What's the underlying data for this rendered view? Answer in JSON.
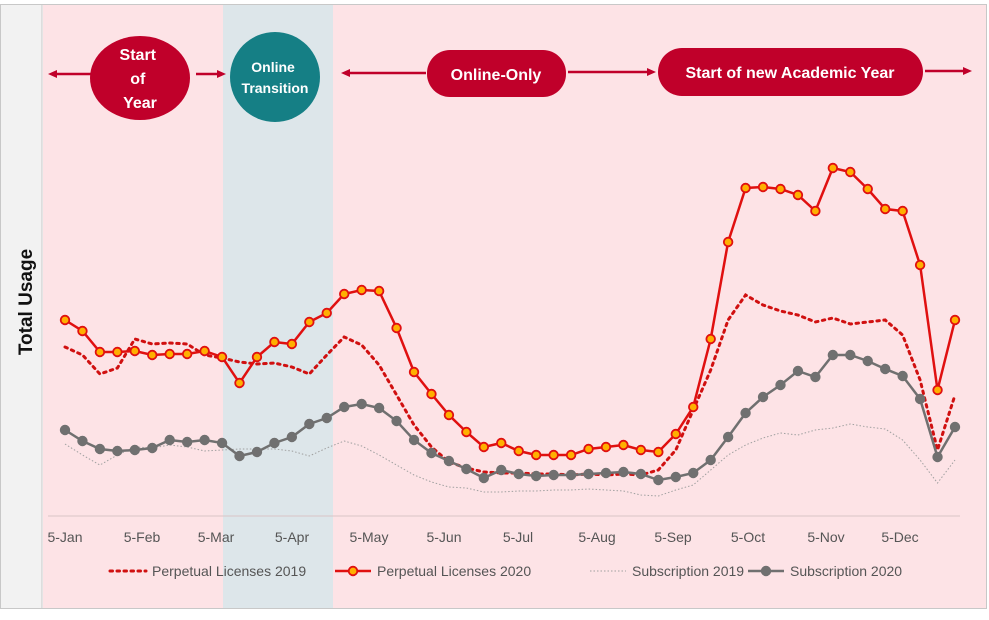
{
  "chart_data": {
    "type": "line",
    "title": "",
    "xlabel": "",
    "ylabel": "Total Usage",
    "ylim": [
      0,
      360
    ],
    "y_units": "relative (unlabeled axis)",
    "grid": false,
    "legend_placement": "bottom",
    "x_tick_labels": [
      "5-Jan",
      "5-Feb",
      "5-Mar",
      "5-Apr",
      "5-May",
      "5-Jun",
      "5-Jul",
      "5-Aug",
      "5-Sep",
      "5-Oct",
      "5-Nov",
      "5-Dec"
    ],
    "x_week_count": 52,
    "series": [
      {
        "name": "Perpetual Licenses 2019",
        "style": "dotted",
        "color": "#d01010",
        "values": [
          168,
          160,
          141,
          147,
          176,
          171,
          172,
          171,
          160,
          157,
          153,
          151,
          152,
          148,
          141,
          160,
          178,
          170,
          150,
          120,
          90,
          68,
          53,
          47,
          43,
          42,
          42,
          41,
          41,
          40,
          41,
          40,
          41,
          40,
          45,
          65,
          105,
          145,
          195,
          220,
          210,
          204,
          200,
          193,
          197,
          191,
          193,
          195,
          180,
          135,
          65,
          120
        ]
      },
      {
        "name": "Perpetual Licenses 2020",
        "style": "line-marker",
        "color": "#e01010",
        "marker_fill": "#ffb000",
        "values": [
          195,
          184,
          163,
          163,
          164,
          160,
          161,
          161,
          164,
          158,
          132,
          158,
          173,
          171,
          193,
          202,
          221,
          225,
          224,
          187,
          143,
          121,
          100,
          83,
          68,
          72,
          64,
          60,
          60,
          60,
          66,
          68,
          70,
          65,
          63,
          81,
          108,
          176,
          273,
          327,
          328,
          326,
          320,
          304,
          347,
          343,
          326,
          306,
          304,
          250,
          125,
          195
        ]
      },
      {
        "name": "Subscription 2019",
        "style": "dotted-thin",
        "color": "#a0a0a0",
        "values": [
          71,
          60,
          50,
          60,
          68,
          67,
          70,
          68,
          64,
          65,
          66,
          66,
          66,
          64,
          59,
          67,
          74,
          69,
          60,
          50,
          40,
          33,
          28,
          27,
          23,
          23,
          24,
          24,
          25,
          25,
          26,
          25,
          24,
          20,
          19,
          25,
          30,
          45,
          60,
          70,
          77,
          82,
          80,
          85,
          87,
          91,
          88,
          86,
          75,
          55,
          32,
          55
        ]
      },
      {
        "name": "Subscription 2020",
        "style": "line-marker",
        "color": "#707070",
        "marker_fill": "#707070",
        "values": [
          85,
          74,
          66,
          64,
          65,
          67,
          75,
          73,
          75,
          72,
          59,
          63,
          72,
          78,
          91,
          97,
          108,
          111,
          107,
          94,
          75,
          62,
          54,
          46,
          37,
          45,
          41,
          39,
          40,
          40,
          41,
          42,
          43,
          41,
          35,
          38,
          42,
          55,
          78,
          102,
          118,
          130,
          144,
          138,
          160,
          160,
          154,
          146,
          139,
          116,
          58,
          88
        ]
      }
    ],
    "annotations": {
      "start_of_year": [
        "Start",
        "of",
        "Year"
      ],
      "online_transition": [
        "Online",
        "Transition"
      ],
      "online_only": "Online-Only",
      "new_academic_year": "Start of new Academic Year"
    },
    "highlight_band": {
      "label_ref": "online_transition",
      "from_week": 10,
      "to_week": 16
    }
  },
  "colors": {
    "pink_bg": "#fde3e6",
    "band": "#dde6ea",
    "crimson": "#c0002a",
    "teal": "#157f85"
  }
}
